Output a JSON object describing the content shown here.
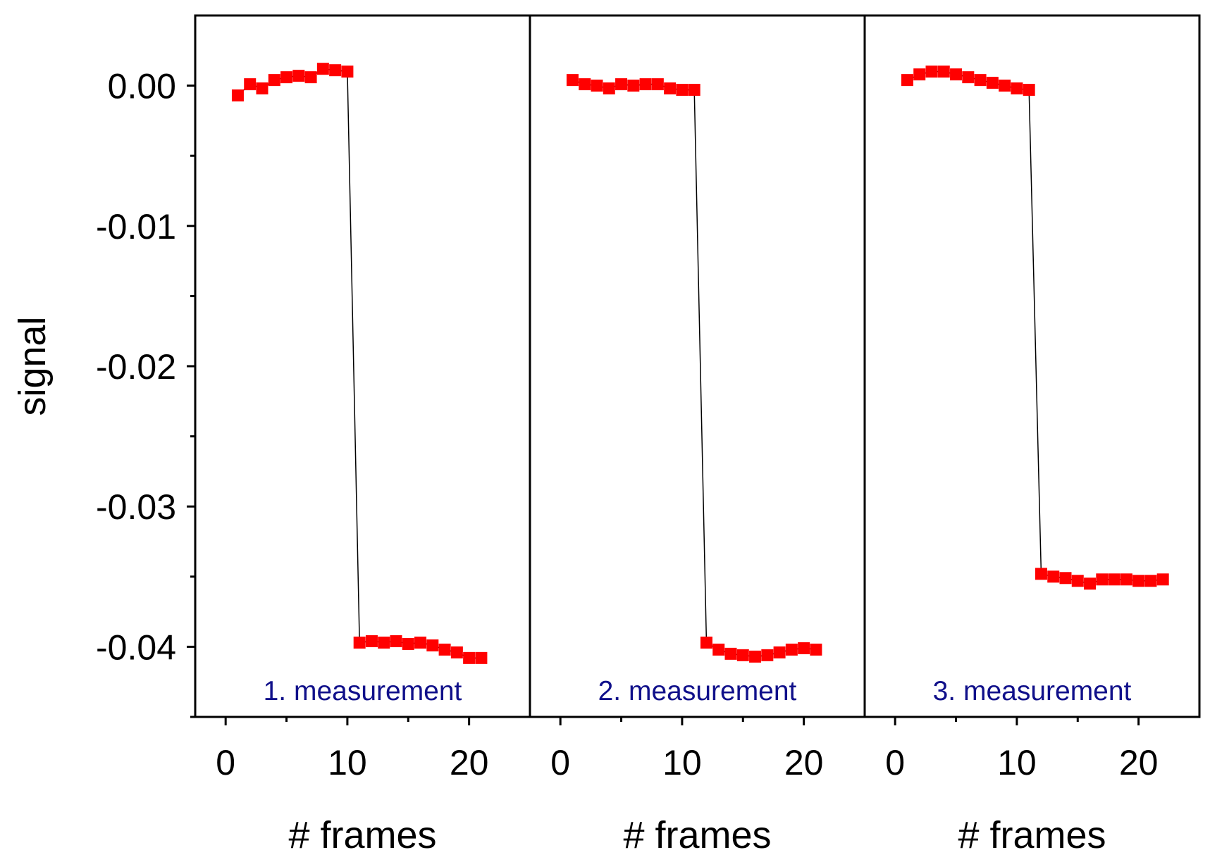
{
  "chart_data": {
    "type": "scatter",
    "ylabel": "signal",
    "ylim": [
      -0.045,
      0.005
    ],
    "yticks": [
      0.0,
      -0.01,
      -0.02,
      -0.03,
      -0.04
    ],
    "ytick_labels": [
      "0.00",
      "-0.01",
      "-0.02",
      "-0.03",
      "-0.04"
    ],
    "marker_color": "#ff0000",
    "line_color": "#000000",
    "panels": [
      {
        "label": "1. measurement",
        "xlabel": "# frames",
        "xlim": [
          -2.5,
          25
        ],
        "xticks": [
          0,
          10,
          20
        ],
        "xtick_labels": [
          "0",
          "10",
          "20"
        ],
        "x": [
          1,
          2,
          3,
          4,
          5,
          6,
          7,
          8,
          9,
          10,
          11,
          12,
          13,
          14,
          15,
          16,
          17,
          18,
          19,
          20,
          21
        ],
        "y": [
          -0.0007,
          0.0001,
          -0.0002,
          0.0004,
          0.0006,
          0.0007,
          0.0006,
          0.0012,
          0.0011,
          0.001,
          -0.0397,
          -0.0396,
          -0.0397,
          -0.0396,
          -0.0398,
          -0.0397,
          -0.0399,
          -0.0402,
          -0.0404,
          -0.0408,
          -0.0408
        ]
      },
      {
        "label": "2. measurement",
        "xlabel": "# frames",
        "xlim": [
          -2.5,
          25
        ],
        "xticks": [
          0,
          10,
          20
        ],
        "xtick_labels": [
          "0",
          "10",
          "20"
        ],
        "x": [
          1,
          2,
          3,
          4,
          5,
          6,
          7,
          8,
          9,
          10,
          11,
          12,
          13,
          14,
          15,
          16,
          17,
          18,
          19,
          20,
          21
        ],
        "y": [
          0.0004,
          0.0001,
          0.0,
          -0.0002,
          0.0001,
          0.0,
          0.0001,
          0.0001,
          -0.0002,
          -0.0003,
          -0.0003,
          -0.0397,
          -0.0402,
          -0.0405,
          -0.0406,
          -0.0407,
          -0.0406,
          -0.0404,
          -0.0402,
          -0.0401,
          -0.0402
        ]
      },
      {
        "label": "3. measurement",
        "xlabel": "# frames",
        "xlim": [
          -2.5,
          25
        ],
        "xticks": [
          0,
          10,
          20
        ],
        "xtick_labels": [
          "0",
          "10",
          "20"
        ],
        "x": [
          1,
          2,
          3,
          4,
          5,
          6,
          7,
          8,
          9,
          10,
          11,
          12,
          13,
          14,
          15,
          16,
          17,
          18,
          19,
          20,
          21,
          22
        ],
        "y": [
          0.0004,
          0.0008,
          0.001,
          0.001,
          0.0008,
          0.0006,
          0.0004,
          0.0002,
          0.0,
          -0.0002,
          -0.0003,
          -0.0348,
          -0.035,
          -0.0351,
          -0.0353,
          -0.0355,
          -0.0352,
          -0.0352,
          -0.0352,
          -0.0353,
          -0.0353,
          -0.0352
        ]
      }
    ]
  }
}
